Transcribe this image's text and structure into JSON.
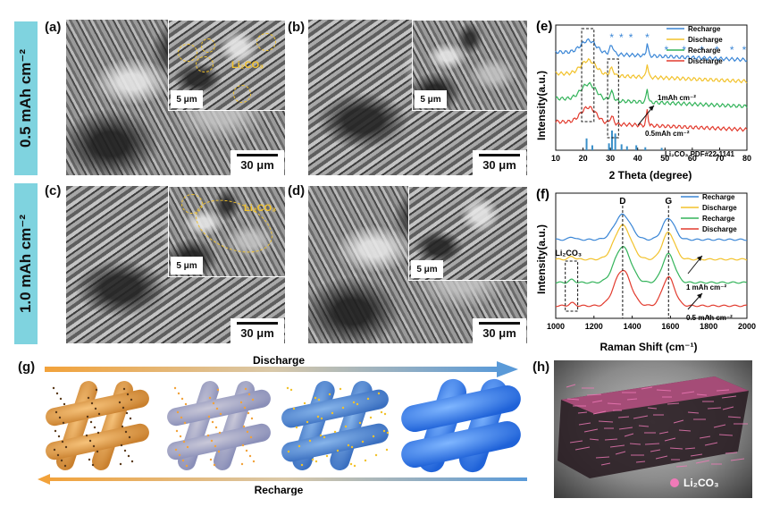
{
  "row_labels": [
    "0.5 mAh cm⁻²",
    "1.0 mAh cm⁻²"
  ],
  "panels": {
    "a": {
      "label": "(a)",
      "scale": "30 μm",
      "inset_scale": "5 μm",
      "annotation": "Li₂CO₃"
    },
    "b": {
      "label": "(b)",
      "scale": "30 μm",
      "inset_scale": "5 μm"
    },
    "c": {
      "label": "(c)",
      "scale": "30 μm",
      "inset_scale": "5 μm",
      "annotation": "Li₂CO₃"
    },
    "d": {
      "label": "(d)",
      "scale": "30 μm",
      "inset_scale": "5 μm"
    },
    "g": {
      "label": "(g)",
      "top_arrow": "Discharge",
      "bottom_arrow": "Recharge"
    },
    "h": {
      "label": "(h)",
      "legend": "Li₂CO₃"
    }
  },
  "colors": {
    "recharge_blue": "#3a86d6",
    "discharge_yellow": "#f2c22b",
    "recharge_green": "#33b35a",
    "discharge_red": "#e23b2e",
    "row_label_bg": "#7fd3df"
  },
  "chart_data": [
    {
      "type": "line",
      "panel": "(e)",
      "xlabel": "2 Theta (degree)",
      "ylabel": "Intensity(a.u.)",
      "xlim": [
        10,
        80
      ],
      "xticks": [
        10,
        20,
        30,
        40,
        50,
        60,
        70,
        80
      ],
      "legend": [
        "Recharge",
        "Discharge",
        "Recharge",
        "Discharge"
      ],
      "legend_position": "top-right",
      "annotations": [
        "1mAh cm⁻²",
        "0.5mAh cm⁻²",
        "Li₂CO₃ PDF#22-1141"
      ],
      "peak_markers_2theta": [
        30.5,
        34,
        37.5,
        43.5,
        50.5,
        57,
        63.5,
        69,
        74.5,
        79
      ],
      "reference_peaks_2theta": [
        21.3,
        23.4,
        29.5,
        30.6,
        31.8,
        34.1,
        36.1,
        39.5,
        42.8,
        48.8
      ],
      "reference_peak_heights": [
        0.6,
        0.25,
        0.35,
        1.0,
        0.85,
        0.3,
        0.2,
        0.25,
        0.15,
        0.12
      ],
      "series": [
        {
          "name": "Recharge",
          "offset": 3,
          "peaks": [
            [
              22,
              0.55,
              4
            ],
            [
              30.5,
              0.25,
              1
            ],
            [
              43.5,
              0.55,
              0.5
            ]
          ]
        },
        {
          "name": "Discharge",
          "offset": 2,
          "peaks": [
            [
              22,
              0.55,
              4
            ],
            [
              30.5,
              0.3,
              1
            ],
            [
              43.5,
              0.5,
              0.5
            ]
          ]
        },
        {
          "name": "Recharge",
          "offset": 1,
          "peaks": [
            [
              22,
              0.5,
              4
            ],
            [
              30.5,
              0.25,
              1
            ],
            [
              43.5,
              0.5,
              0.5
            ]
          ]
        },
        {
          "name": "Discharge",
          "offset": 0,
          "peaks": [
            [
              22,
              0.45,
              4
            ],
            [
              30.5,
              0.3,
              1
            ],
            [
              43.5,
              0.45,
              0.5
            ]
          ]
        }
      ]
    },
    {
      "type": "line",
      "panel": "(f)",
      "xlabel": "Raman Shift (cm⁻¹)",
      "ylabel": "Intensity(a.u.)",
      "xlim": [
        1000,
        2000
      ],
      "xticks": [
        1000,
        1200,
        1400,
        1600,
        1800,
        2000
      ],
      "legend": [
        "Recharge",
        "Discharge",
        "Recharge",
        "Discharge"
      ],
      "legend_position": "top-right",
      "band_labels": [
        "D",
        "G",
        "Li₂CO₃"
      ],
      "band_positions": [
        1350,
        1590,
        1085
      ],
      "annotations": [
        "1 mAh cm⁻²",
        "0.5 mAh cm⁻²"
      ],
      "series": [
        {
          "name": "Recharge",
          "offset": 3,
          "D": 1.0,
          "G": 0.8
        },
        {
          "name": "Discharge",
          "offset": 2,
          "D": 1.0,
          "G": 0.8
        },
        {
          "name": "Recharge",
          "offset": 1,
          "D": 0.95,
          "G": 0.75
        },
        {
          "name": "Discharge",
          "offset": 0,
          "D": 0.7,
          "G": 0.6
        }
      ]
    }
  ]
}
